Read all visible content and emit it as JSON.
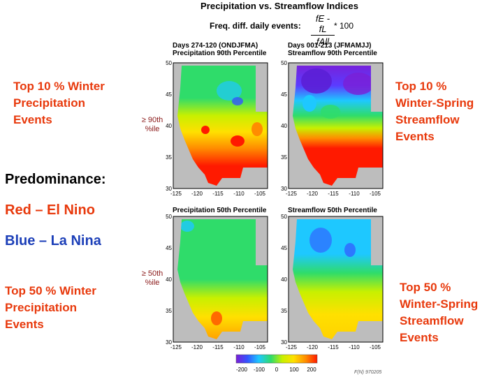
{
  "title": "Precipitation vs. Streamflow Indices",
  "formula": {
    "label": "Freq. diff. daily events:",
    "numerator": "fE - fL",
    "denominator": "fAll",
    "multiplier": "* 100"
  },
  "left_text": {
    "top10": [
      "Top 10 % Winter",
      "Precipitation",
      "Events"
    ],
    "predominance": "Predominance:",
    "red": "Red – El Nino",
    "blue": "Blue – La Nina",
    "top50": [
      "Top 50 % Winter",
      "Precipitation",
      "Events"
    ]
  },
  "right_text": {
    "top10": [
      "Top 10 %",
      "Winter-Spring",
      "Streamflow",
      "Events"
    ],
    "top50": [
      "Top 50 %",
      "Winter-Spring",
      "Streamflow",
      "Events"
    ]
  },
  "side_notes": {
    "p90": [
      "≥ 90th",
      "%ile"
    ],
    "p50": [
      "≥ 50th",
      "%ile"
    ]
  },
  "panels": {
    "precip90": {
      "line1": "Days 274-120 (ONDJFMA)",
      "line2": "Precipitation 90th Percentile"
    },
    "stream90": {
      "line1": "Days 001-213 (JFMAMJJ)",
      "line2": "Streamflow 90th Percentile"
    },
    "precip50": {
      "line1": "Precipitation 50th Percentile"
    },
    "stream50": {
      "line1": "Streamflow 50th Percentile"
    }
  },
  "axis": {
    "x_ticks": [
      "-125",
      "-120",
      "-115",
      "-110",
      "-105"
    ],
    "y_ticks": [
      "50",
      "45",
      "40",
      "35",
      "30"
    ]
  },
  "colorbar": {
    "ticks": [
      "-200",
      "-100",
      "0",
      "100",
      "200"
    ],
    "colors": [
      "#7a1fd6",
      "#3355ff",
      "#1ec8ff",
      "#2fdc6a",
      "#c8f000",
      "#ffe000",
      "#ff8c00",
      "#ff1a00"
    ]
  },
  "footnote": "F(N) 970205"
}
